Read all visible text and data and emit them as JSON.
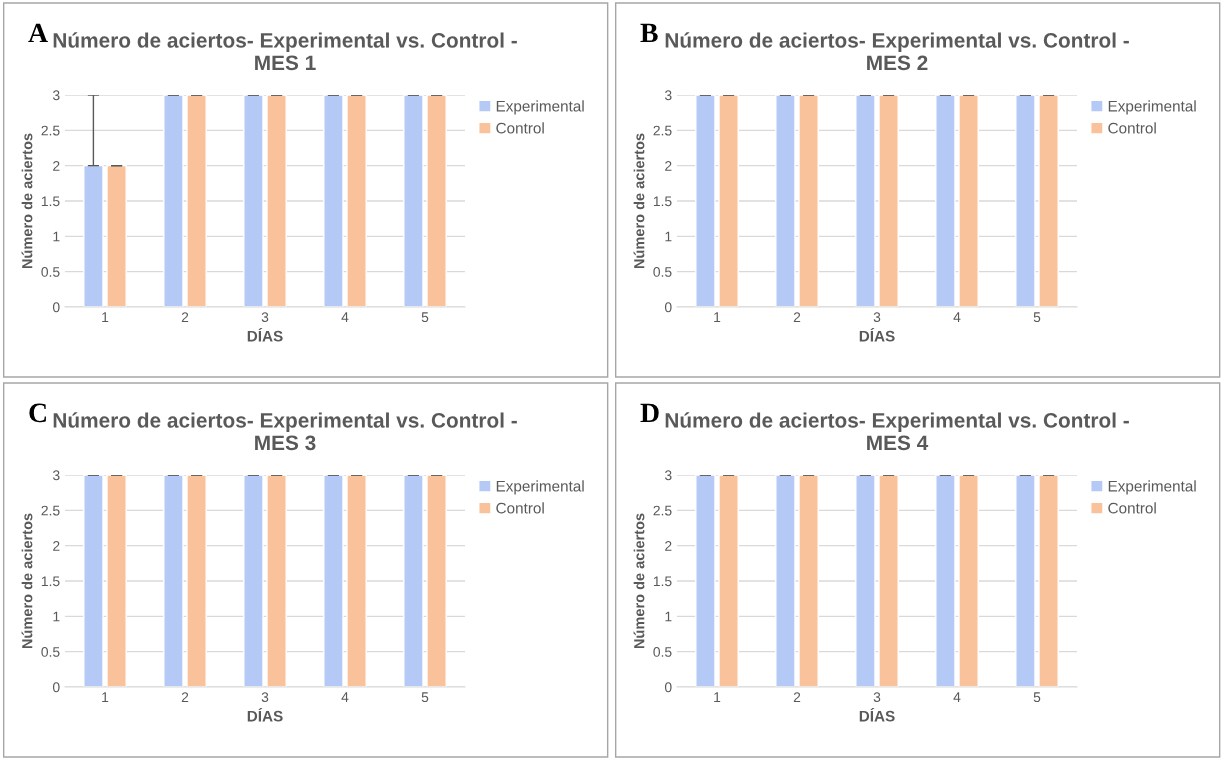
{
  "chart_data": [
    {
      "type": "bar",
      "title": "Número de aciertos- Experimental vs. Control -\nMES 1",
      "xlabel": "DÍAS",
      "ylabel": "Número de aciertos",
      "annotations": [
        "A"
      ],
      "categories": [
        "1",
        "2",
        "3",
        "4",
        "5"
      ],
      "series": [
        {
          "name": "Experimental",
          "color": "#b4c9f5",
          "values": [
            2,
            3,
            3,
            3,
            3
          ],
          "errors": [
            [
              2,
              3
            ],
            0,
            0,
            0,
            0
          ]
        },
        {
          "name": "Control",
          "color": "#f9c29a",
          "values": [
            2,
            3,
            3,
            3,
            3
          ],
          "errors": [
            0,
            0,
            0,
            0,
            0
          ]
        }
      ],
      "ylim": [
        0,
        3
      ],
      "yticks": [
        0,
        0.5,
        1,
        1.5,
        2,
        2.5,
        3
      ],
      "grid": "y",
      "legend": "top right"
    },
    {
      "type": "bar",
      "title": "Número de aciertos- Experimental vs. Control -\nMES 2",
      "xlabel": "DÍAS",
      "ylabel": "Número de aciertos",
      "annotations": [
        "B"
      ],
      "categories": [
        "1",
        "2",
        "3",
        "4",
        "5"
      ],
      "series": [
        {
          "name": "Experimental",
          "color": "#b4c9f5",
          "values": [
            3,
            3,
            3,
            3,
            3
          ],
          "errors": [
            0,
            0,
            0,
            0,
            0
          ]
        },
        {
          "name": "Control",
          "color": "#f9c29a",
          "values": [
            3,
            3,
            3,
            3,
            3
          ],
          "errors": [
            0,
            0,
            0,
            0,
            0
          ]
        }
      ],
      "ylim": [
        0,
        3
      ],
      "yticks": [
        0,
        0.5,
        1,
        1.5,
        2,
        2.5,
        3
      ],
      "grid": "y",
      "legend": "top right"
    },
    {
      "type": "bar",
      "title": "Número de aciertos- Experimental vs. Control -\nMES 3",
      "xlabel": "DÍAS",
      "ylabel": "Número de aciertos",
      "annotations": [
        "C"
      ],
      "categories": [
        "1",
        "2",
        "3",
        "4",
        "5"
      ],
      "series": [
        {
          "name": "Experimental",
          "color": "#b4c9f5",
          "values": [
            3,
            3,
            3,
            3,
            3
          ],
          "errors": [
            0,
            0,
            0,
            0,
            0
          ]
        },
        {
          "name": "Control",
          "color": "#f9c29a",
          "values": [
            3,
            3,
            3,
            3,
            3
          ],
          "errors": [
            0,
            0,
            0,
            0,
            0
          ]
        }
      ],
      "ylim": [
        0,
        3
      ],
      "yticks": [
        0,
        0.5,
        1,
        1.5,
        2,
        2.5,
        3
      ],
      "grid": "y",
      "legend": "top right"
    },
    {
      "type": "bar",
      "title": "Número de aciertos- Experimental vs. Control -\nMES 4",
      "xlabel": "DÍAS",
      "ylabel": "Número de aciertos",
      "annotations": [
        "D"
      ],
      "categories": [
        "1",
        "2",
        "3",
        "4",
        "5"
      ],
      "series": [
        {
          "name": "Experimental",
          "color": "#b4c9f5",
          "values": [
            3,
            3,
            3,
            3,
            3
          ],
          "errors": [
            0,
            0,
            0,
            0,
            0
          ]
        },
        {
          "name": "Control",
          "color": "#f9c29a",
          "values": [
            3,
            3,
            3,
            3,
            3
          ],
          "errors": [
            0,
            0,
            0,
            0,
            0
          ]
        }
      ],
      "ylim": [
        0,
        3
      ],
      "yticks": [
        0,
        0.5,
        1,
        1.5,
        2,
        2.5,
        3
      ],
      "grid": "y",
      "legend": "top right"
    }
  ]
}
